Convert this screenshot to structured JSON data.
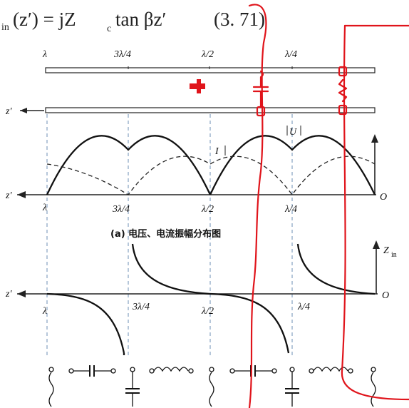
{
  "equation": {
    "subscript": "in",
    "text": "(z′) = jZ",
    "zc_sub": "c",
    "tail": "tan βz′",
    "number": "(3. 71)"
  },
  "line_labels": [
    "λ",
    "3λ/4",
    "λ/2",
    "λ/4"
  ],
  "axis_z_prime": "z′",
  "amplitude": {
    "current_label": "I",
    "voltage_label": "U",
    "origin": "O",
    "ticks": [
      "λ",
      "3λ/4",
      "λ/2",
      "λ/4"
    ],
    "caption": "(a) 电压、电流振幅分布图"
  },
  "impedance": {
    "axis_label": "Z",
    "axis_sub": "in",
    "origin": "O",
    "ticks": [
      "λ",
      "3λ/4",
      "λ/2",
      "λ/4"
    ]
  },
  "colors": {
    "ink": "#111111",
    "dashed_guide": "#6e8fb5",
    "annotation_red": "#e0141b"
  },
  "icons": {
    "cross": "plus-cross-icon",
    "capacitor": "capacitor-icon",
    "inductor": "inductor-icon"
  }
}
